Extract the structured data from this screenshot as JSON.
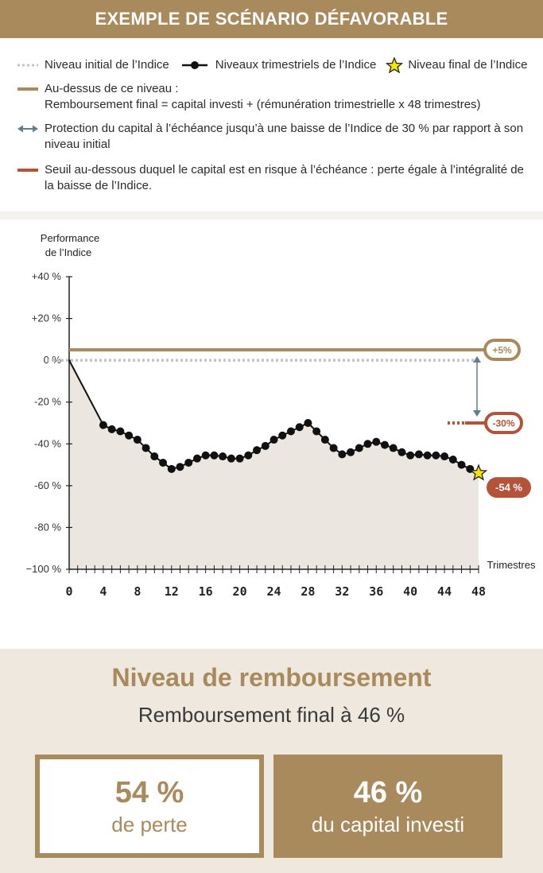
{
  "header": {
    "title": "EXEMPLE DE SCÉNARIO DÉFAVORABLE"
  },
  "legend": {
    "initial_level": "Niveau initial de l’Indice",
    "quarterly_levels": "Niveaux trimestriels de l’Indice",
    "final_level": "Niveau final de l’Indice",
    "above_line1": "Au-dessus de ce niveau :",
    "above_line2": "Remboursement final = capital investi + (rémunération trimestrielle x 48 trimestres)",
    "protection_line1": "Protection du capital à l’échéance jusqu’à une baisse de l’Indice de 30 % par rapport à son",
    "protection_line2": "niveau initial",
    "threshold_line1": "Seuil au-dessous duquel le capital est en risque à l’échéance : perte égale à l’intégralité de",
    "threshold_line2": "la baisse de l’Indice."
  },
  "colors": {
    "gold": "#a98a5c",
    "red": "#b5523a",
    "arrow": "#5f7f8c",
    "fill": "#ebe6e0",
    "dots": "#c4c4c4"
  },
  "chart_data": {
    "type": "line",
    "ylabel_line1": "Performance",
    "ylabel_line2": "de l’Indice",
    "xlabel": "Trimestres",
    "ylim": [
      -100,
      40
    ],
    "xlim": [
      0,
      48
    ],
    "yticks": [
      40,
      20,
      0,
      -20,
      -40,
      -60,
      -80,
      -100
    ],
    "ytick_labels": [
      "+40 %",
      "+20 %",
      "0 %",
      "-20 %",
      "-40 %",
      "-60 %",
      "-80 %",
      "−100 %"
    ],
    "xticks": [
      0,
      4,
      8,
      12,
      16,
      20,
      24,
      28,
      32,
      36,
      40,
      44,
      48
    ],
    "xtick_labels": [
      "0",
      "4",
      "8",
      "12",
      "16",
      "20",
      "24",
      "28",
      "32",
      "36",
      "40",
      "44",
      "48"
    ],
    "series": [
      {
        "x": [
          0,
          4,
          5,
          6,
          7,
          8,
          9,
          10,
          11,
          12,
          13,
          14,
          15,
          16,
          17,
          18,
          19,
          20,
          21,
          22,
          23,
          24,
          25,
          26,
          27,
          28,
          29,
          30,
          31,
          32,
          33,
          34,
          35,
          36,
          37,
          38,
          39,
          40,
          41,
          42,
          43,
          44,
          45,
          46,
          47,
          48
        ],
        "y": [
          0,
          -31,
          -33,
          -34,
          -36,
          -38,
          -42,
          -46,
          -49,
          -52,
          -51,
          -49,
          -47,
          -45.5,
          -45.5,
          -46,
          -47,
          -47,
          -45.5,
          -43,
          -41,
          -38,
          -36,
          -34,
          -32,
          -30,
          -34,
          -38,
          -42,
          -45,
          -44,
          -42,
          -40,
          -39,
          -40.5,
          -42,
          -44,
          -45.5,
          -45,
          -45.5,
          -45.5,
          -46,
          -47.5,
          -50,
          -52,
          -54
        ]
      }
    ],
    "final_point": {
      "x": 48,
      "y": -54
    },
    "level_plus5": 5,
    "level_minus30": -30,
    "label_plus5": "+5%",
    "label_minus30": "-30%",
    "label_final": "-54 %"
  },
  "bottom": {
    "title": "Niveau de remboursement",
    "subtitle": "Remboursement final à 46 %",
    "loss_value": "54 %",
    "loss_label": "de perte",
    "capital_value": "46 %",
    "capital_label": "du capital investi"
  }
}
